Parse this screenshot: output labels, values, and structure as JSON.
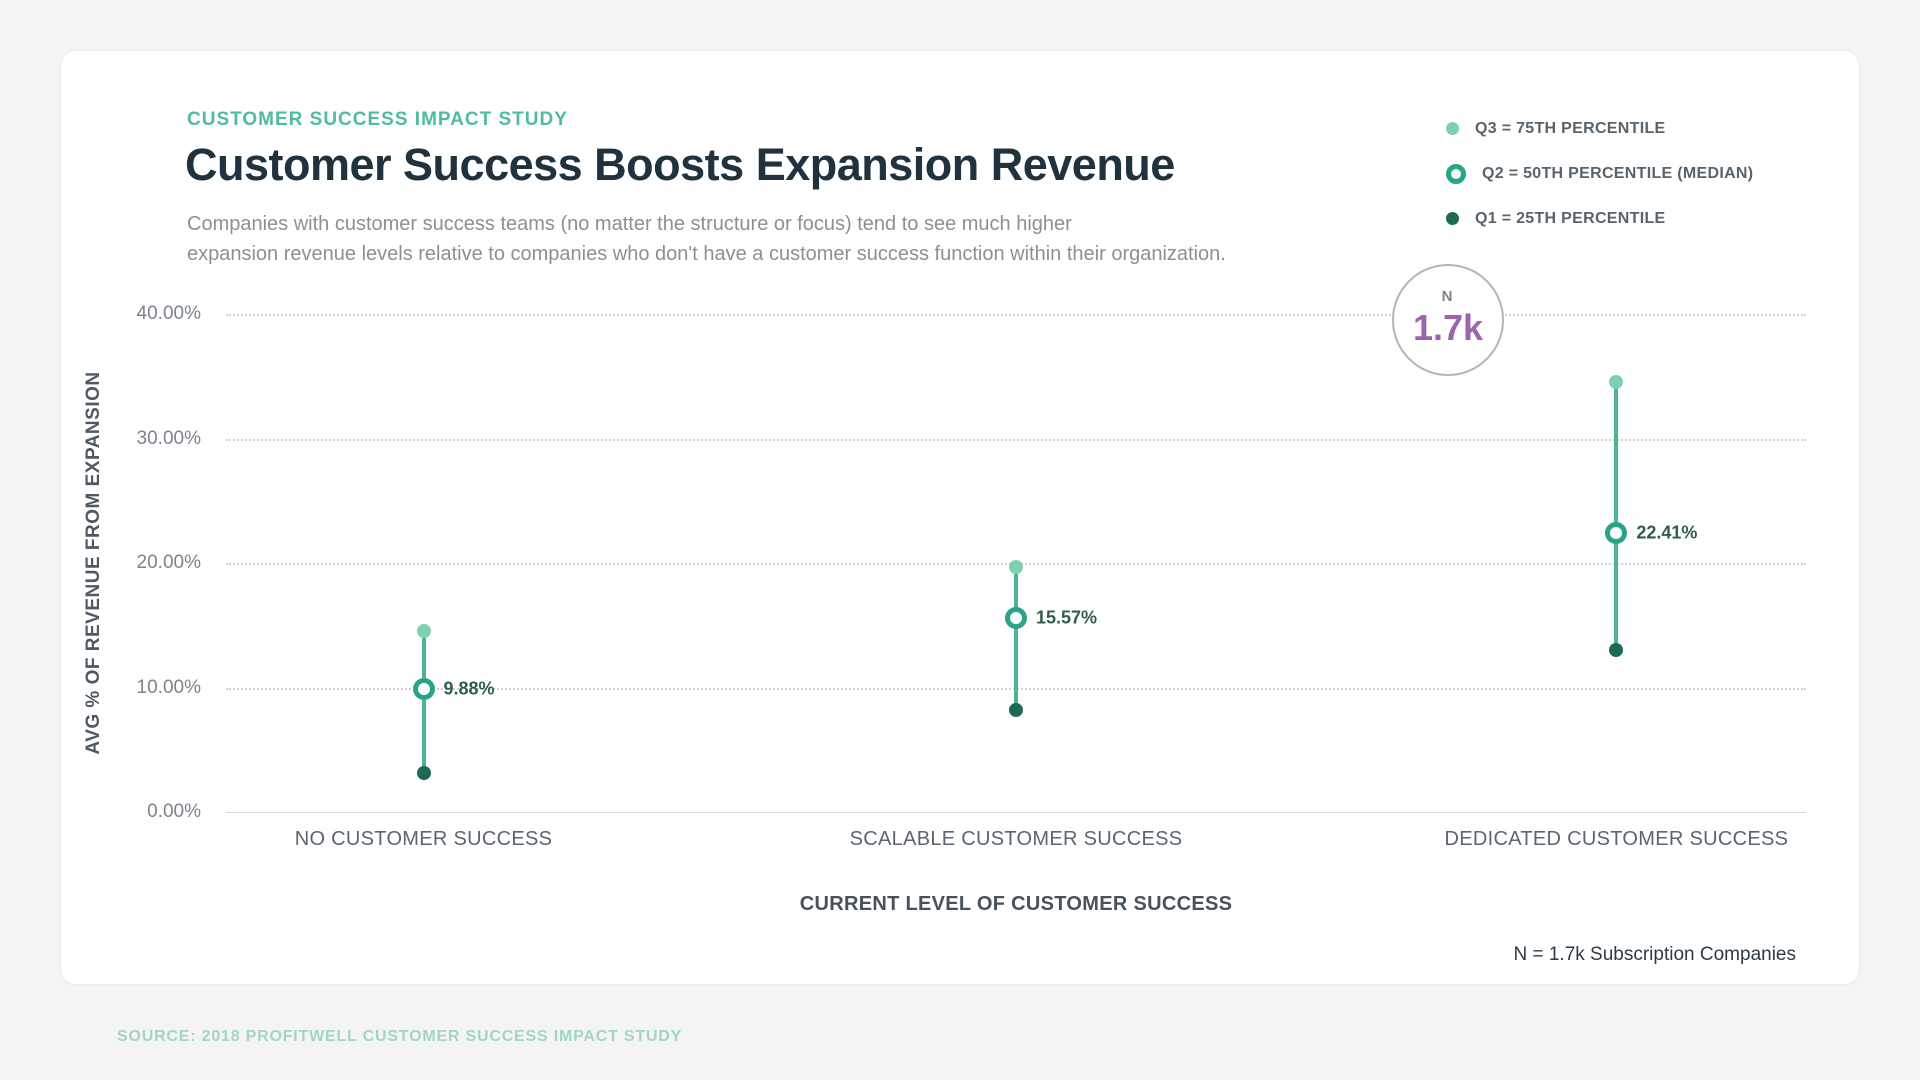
{
  "page": {
    "background_color": "#f4f4f3",
    "source_note": "SOURCE: 2018 PROFITWELL CUSTOMER SUCCESS IMPACT STUDY"
  },
  "header": {
    "eyebrow": "CUSTOMER SUCCESS IMPACT STUDY",
    "title": "Customer Success Boosts Expansion Revenue",
    "subtitle_line1": "Companies with customer success teams (no matter the structure or focus) tend to see much higher",
    "subtitle_line2": "expansion revenue levels relative to companies who don't have a customer success function within their organization."
  },
  "legend": {
    "items": [
      {
        "label": "Q3 = 75TH PERCENTILE",
        "marker": "dot-light"
      },
      {
        "label": "Q2 = 50TH PERCENTILE (MEDIAN)",
        "marker": "ring"
      },
      {
        "label": "Q1 = 25TH PERCENTILE",
        "marker": "dot-dark"
      }
    ]
  },
  "badge": {
    "label": "N",
    "value": "1.7k"
  },
  "footnote": "N = 1.7k Subscription Companies",
  "colors": {
    "accent_teal": "#4ebc9e",
    "q3_light_green": "#7fd1ae",
    "q2_teal_ring": "#2aa489",
    "q1_dark_green": "#1d6a54",
    "range_line": "#4cb394",
    "badge_value_purple": "#9c64ad",
    "title_dark": "#20323d",
    "source_teal_light": "#a2d6c2"
  },
  "chart_data": {
    "type": "dot-range",
    "title": "Customer Success Boosts Expansion Revenue",
    "xlabel": "CURRENT LEVEL OF CUSTOMER SUCCESS",
    "ylabel": "AVG % OF REVENUE FROM EXPANSION",
    "ylim": [
      0,
      40
    ],
    "grid": true,
    "legend_position": "top-right",
    "yticks": [
      {
        "value": 0,
        "label": "0.00%",
        "solid": true
      },
      {
        "value": 10,
        "label": "10.00%"
      },
      {
        "value": 20,
        "label": "20.00%"
      },
      {
        "value": 30,
        "label": "30.00%"
      },
      {
        "value": 40,
        "label": "40.00%"
      }
    ],
    "categories": [
      "NO CUSTOMER SUCCESS",
      "SCALABLE CUSTOMER SUCCESS",
      "DEDICATED CUSTOMER SUCCESS"
    ],
    "series": [
      {
        "name": "Q3 = 75TH PERCENTILE",
        "role": "q3",
        "values": [
          14.5,
          19.7,
          34.5
        ]
      },
      {
        "name": "Q2 = 50TH PERCENTILE (MEDIAN)",
        "role": "q2",
        "values": [
          9.88,
          15.57,
          22.41
        ],
        "labels": [
          "9.88%",
          "15.57%",
          "22.41%"
        ]
      },
      {
        "name": "Q1 = 25TH PERCENTILE",
        "role": "q1",
        "values": [
          3.1,
          8.2,
          13.0
        ]
      }
    ]
  }
}
